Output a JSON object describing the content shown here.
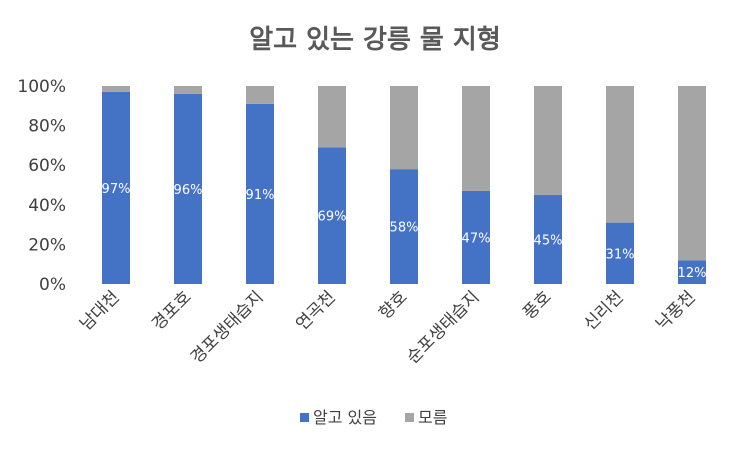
{
  "chart_data": {
    "type": "bar",
    "stacked": "percent",
    "title": "알고 있는 강릉 물 지형",
    "categories": [
      "남대천",
      "경포호",
      "경포생태습지",
      "연곡천",
      "향호",
      "순포생태습지",
      "풍호",
      "신리천",
      "낙풍천"
    ],
    "series": [
      {
        "name": "알고 있음",
        "color": "#4472C4",
        "values": [
          97,
          96,
          91,
          69,
          58,
          47,
          45,
          31,
          12
        ],
        "labels": [
          "97%",
          "96%",
          "91%",
          "69%",
          "58%",
          "47%",
          "45%",
          "31%",
          "12%"
        ]
      },
      {
        "name": "모름",
        "color": "#A5A5A5",
        "values": [
          3,
          4,
          9,
          31,
          42,
          53,
          55,
          69,
          88
        ]
      }
    ],
    "y_ticks": [
      "0%",
      "20%",
      "40%",
      "60%",
      "80%",
      "100%"
    ],
    "ylim": [
      0,
      100
    ],
    "grid": false,
    "legend_position": "bottom"
  }
}
